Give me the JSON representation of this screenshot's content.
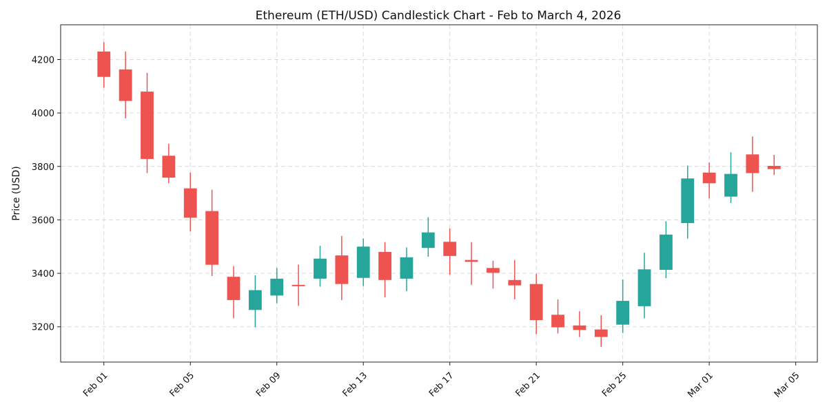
{
  "chart_data": {
    "type": "candlestick",
    "title": "Ethereum (ETH/USD) Candlestick Chart - Feb to March 4, 2026",
    "xlabel": "",
    "ylabel": "Price (USD)",
    "ylim": [
      3068,
      4330
    ],
    "xlim": [
      "2026-01-30",
      "2026-03-06"
    ],
    "grid": true,
    "colors": {
      "up": "#26a69a",
      "down": "#ef5350"
    },
    "x_ticks": [
      "Feb 01",
      "Feb 05",
      "Feb 09",
      "Feb 13",
      "Feb 17",
      "Feb 21",
      "Feb 25",
      "Mar 01",
      "Mar 05"
    ],
    "x_tick_dates": [
      "2026-02-01",
      "2026-02-05",
      "2026-02-09",
      "2026-02-13",
      "2026-02-17",
      "2026-02-21",
      "2026-02-25",
      "2026-03-01",
      "2026-03-05"
    ],
    "y_ticks": [
      3200,
      3400,
      3600,
      3800,
      4000,
      4200
    ],
    "candles": [
      {
        "date": "2026-02-01",
        "open": 4230,
        "high": 4265,
        "low": 4095,
        "close": 4135
      },
      {
        "date": "2026-02-02",
        "open": 4163,
        "high": 4230,
        "low": 3980,
        "close": 4045
      },
      {
        "date": "2026-02-03",
        "open": 4080,
        "high": 4150,
        "low": 3775,
        "close": 3828
      },
      {
        "date": "2026-02-04",
        "open": 3840,
        "high": 3885,
        "low": 3737,
        "close": 3758
      },
      {
        "date": "2026-02-05",
        "open": 3718,
        "high": 3777,
        "low": 3557,
        "close": 3608
      },
      {
        "date": "2026-02-06",
        "open": 3633,
        "high": 3713,
        "low": 3390,
        "close": 3432
      },
      {
        "date": "2026-02-07",
        "open": 3387,
        "high": 3427,
        "low": 3232,
        "close": 3300
      },
      {
        "date": "2026-02-08",
        "open": 3263,
        "high": 3393,
        "low": 3198,
        "close": 3337
      },
      {
        "date": "2026-02-09",
        "open": 3317,
        "high": 3420,
        "low": 3288,
        "close": 3380
      },
      {
        "date": "2026-02-10",
        "open": 3357,
        "high": 3433,
        "low": 3278,
        "close": 3353
      },
      {
        "date": "2026-02-11",
        "open": 3380,
        "high": 3503,
        "low": 3350,
        "close": 3455
      },
      {
        "date": "2026-02-12",
        "open": 3467,
        "high": 3540,
        "low": 3300,
        "close": 3360
      },
      {
        "date": "2026-02-13",
        "open": 3383,
        "high": 3530,
        "low": 3352,
        "close": 3500
      },
      {
        "date": "2026-02-14",
        "open": 3480,
        "high": 3517,
        "low": 3310,
        "close": 3375
      },
      {
        "date": "2026-02-15",
        "open": 3380,
        "high": 3497,
        "low": 3333,
        "close": 3460
      },
      {
        "date": "2026-02-16",
        "open": 3495,
        "high": 3610,
        "low": 3462,
        "close": 3553
      },
      {
        "date": "2026-02-17",
        "open": 3518,
        "high": 3568,
        "low": 3395,
        "close": 3465
      },
      {
        "date": "2026-02-18",
        "open": 3450,
        "high": 3517,
        "low": 3357,
        "close": 3443
      },
      {
        "date": "2026-02-19",
        "open": 3420,
        "high": 3447,
        "low": 3343,
        "close": 3402
      },
      {
        "date": "2026-02-20",
        "open": 3375,
        "high": 3450,
        "low": 3303,
        "close": 3355
      },
      {
        "date": "2026-02-21",
        "open": 3360,
        "high": 3398,
        "low": 3172,
        "close": 3225
      },
      {
        "date": "2026-02-22",
        "open": 3245,
        "high": 3302,
        "low": 3175,
        "close": 3198
      },
      {
        "date": "2026-02-23",
        "open": 3205,
        "high": 3258,
        "low": 3162,
        "close": 3188
      },
      {
        "date": "2026-02-24",
        "open": 3190,
        "high": 3243,
        "low": 3125,
        "close": 3162
      },
      {
        "date": "2026-02-25",
        "open": 3208,
        "high": 3377,
        "low": 3177,
        "close": 3297
      },
      {
        "date": "2026-02-26",
        "open": 3277,
        "high": 3477,
        "low": 3232,
        "close": 3415
      },
      {
        "date": "2026-02-27",
        "open": 3413,
        "high": 3595,
        "low": 3382,
        "close": 3545
      },
      {
        "date": "2026-02-28",
        "open": 3588,
        "high": 3803,
        "low": 3530,
        "close": 3755
      },
      {
        "date": "2026-03-01",
        "open": 3777,
        "high": 3815,
        "low": 3680,
        "close": 3737
      },
      {
        "date": "2026-03-02",
        "open": 3687,
        "high": 3853,
        "low": 3663,
        "close": 3772
      },
      {
        "date": "2026-03-03",
        "open": 3845,
        "high": 3912,
        "low": 3705,
        "close": 3775
      },
      {
        "date": "2026-03-04",
        "open": 3802,
        "high": 3843,
        "low": 3768,
        "close": 3790
      }
    ]
  }
}
